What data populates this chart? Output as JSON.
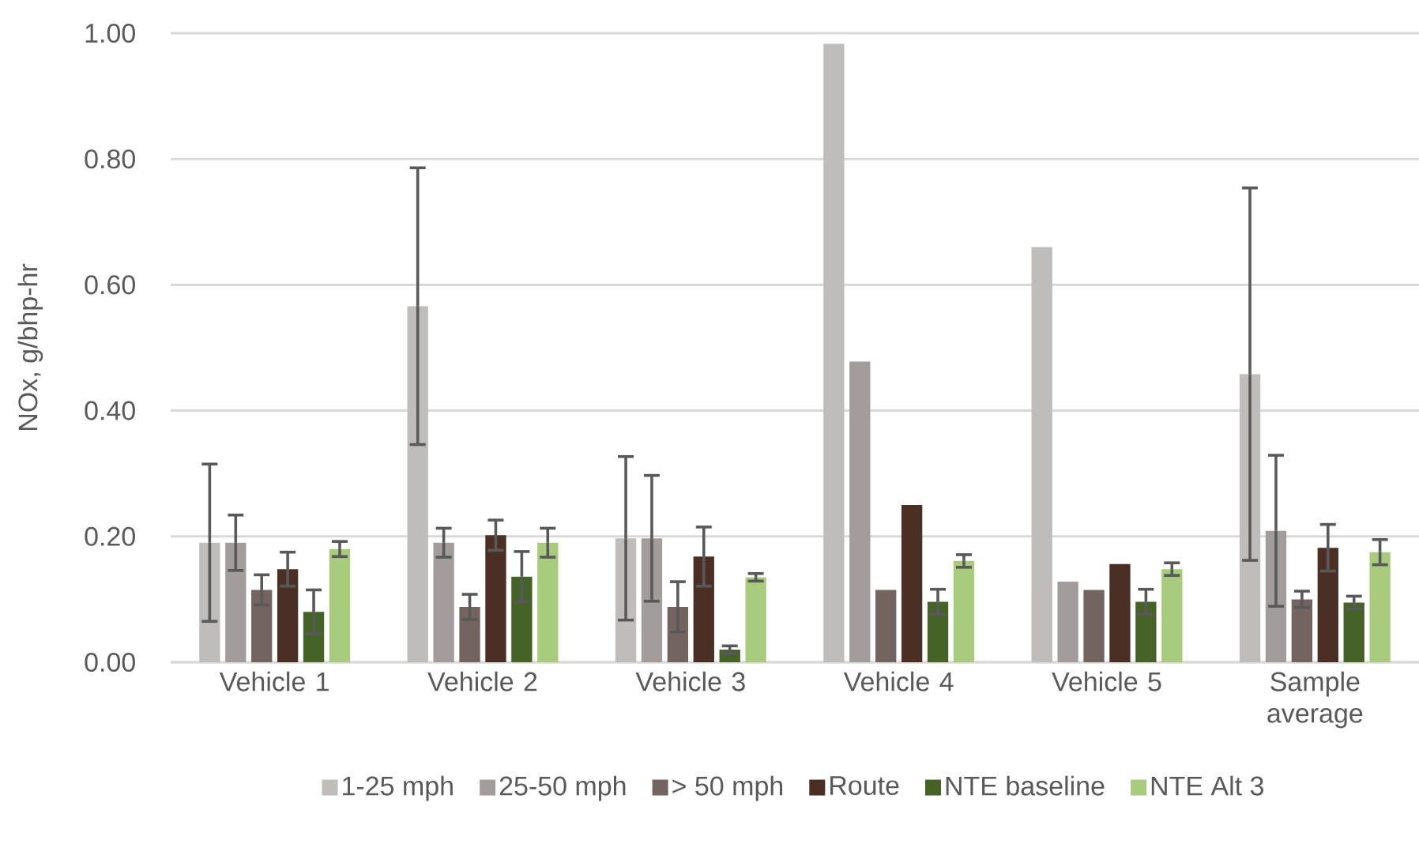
{
  "chart_data": {
    "type": "bar",
    "ylabel": "NOx, g/bhp-hr",
    "categories": [
      "Vehicle 1",
      "Vehicle 2",
      "Vehicle 3",
      "Vehicle 4",
      "Vehicle 5",
      "Sample average"
    ],
    "series": [
      {
        "name": "1-25 mph",
        "color": "#c0bcba",
        "values": [
          0.19,
          0.566,
          0.197,
          0.983,
          0.66,
          0.458
        ],
        "errors": [
          0.125,
          0.22,
          0.13,
          null,
          null,
          0.296
        ]
      },
      {
        "name": "25-50 mph",
        "color": "#a29d9a",
        "values": [
          0.19,
          0.19,
          0.197,
          0.478,
          0.128,
          0.209
        ],
        "errors": [
          0.044,
          0.023,
          0.1,
          null,
          null,
          0.12
        ]
      },
      {
        "name": "> 50 mph",
        "color": "#736460",
        "values": [
          0.115,
          0.088,
          0.088,
          0.115,
          0.115,
          0.1
        ],
        "errors": [
          0.024,
          0.02,
          0.04,
          null,
          null,
          0.013
        ]
      },
      {
        "name": "Route",
        "color": "#4b2f25",
        "values": [
          0.148,
          0.202,
          0.168,
          0.25,
          0.156,
          0.182
        ],
        "errors": [
          0.027,
          0.024,
          0.047,
          null,
          null,
          0.037
        ]
      },
      {
        "name": "NTE baseline",
        "color": "#466327",
        "values": [
          0.08,
          0.136,
          0.02,
          0.096,
          0.096,
          0.095
        ],
        "errors": [
          0.035,
          0.04,
          0.006,
          0.02,
          0.02,
          0.01
        ]
      },
      {
        "name": "NTE Alt 3",
        "color": "#a8cb7e",
        "values": [
          0.18,
          0.19,
          0.135,
          0.161,
          0.148,
          0.175
        ],
        "errors": [
          0.012,
          0.023,
          0.006,
          0.01,
          0.01,
          0.02
        ]
      }
    ],
    "ylim": [
      0,
      1
    ],
    "yticks": [
      {
        "value": 0,
        "label": "0.00"
      },
      {
        "value": 0.2,
        "label": "0.20"
      },
      {
        "value": 0.4,
        "label": "0.40"
      },
      {
        "value": 0.6,
        "label": "0.60"
      },
      {
        "value": 0.8,
        "label": "0.80"
      },
      {
        "value": 1,
        "label": "1.00"
      }
    ],
    "grid": "y",
    "legend": "bottom"
  }
}
